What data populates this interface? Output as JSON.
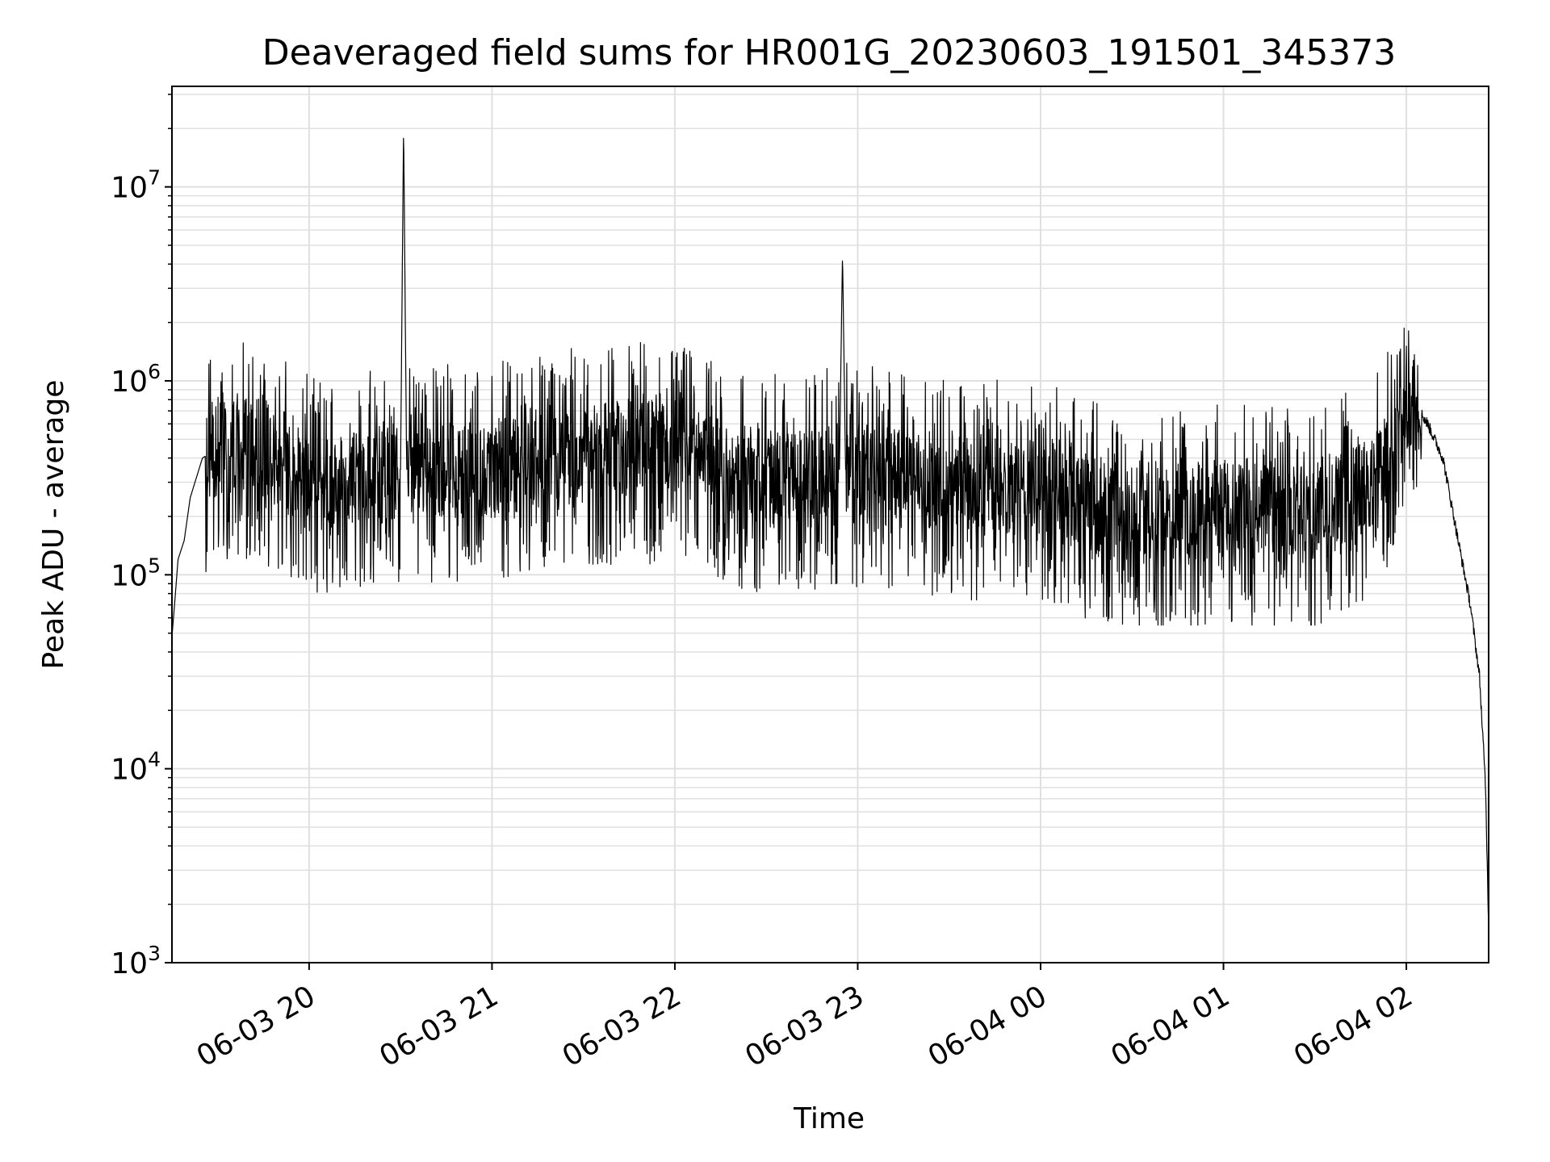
{
  "chart_data": {
    "type": "line",
    "title": "Deaveraged field sums for HR001G_20230603_191501_345373",
    "xlabel": "Time",
    "ylabel": "Peak ADU - average",
    "yscale": "log",
    "ylim": [
      1000,
      33000000
    ],
    "xlim": [
      "2023-06-03 19:15",
      "2023-06-04 02:27"
    ],
    "grid": true,
    "line_color": "#000000",
    "grid_color": "#e0e0e0",
    "x_ticks": [
      {
        "value": "2023-06-03 20:00",
        "label": "06-03 20"
      },
      {
        "value": "2023-06-03 21:00",
        "label": "06-03 21"
      },
      {
        "value": "2023-06-03 22:00",
        "label": "06-03 22"
      },
      {
        "value": "2023-06-03 23:00",
        "label": "06-03 23"
      },
      {
        "value": "2023-06-04 00:00",
        "label": "06-04 00"
      },
      {
        "value": "2023-06-04 01:00",
        "label": "06-04 01"
      },
      {
        "value": "2023-06-04 02:00",
        "label": "06-04 02"
      }
    ],
    "y_ticks": [
      {
        "value": 1000,
        "base": "10",
        "exp": "3"
      },
      {
        "value": 10000,
        "base": "10",
        "exp": "4"
      },
      {
        "value": 100000,
        "base": "10",
        "exp": "5"
      },
      {
        "value": 1000000,
        "base": "10",
        "exp": "6"
      },
      {
        "value": 10000000,
        "base": "10",
        "exp": "7"
      }
    ],
    "series": [
      {
        "description_points": [
          [
            "2023-06-03 19:15",
            48000
          ],
          [
            "2023-06-03 19:16",
            75000
          ],
          [
            "2023-06-03 19:17",
            120000
          ],
          [
            "2023-06-03 19:19",
            150000
          ],
          [
            "2023-06-03 19:21",
            250000
          ],
          [
            "2023-06-03 19:25",
            400000
          ],
          [
            "2023-06-03 19:35",
            500000
          ],
          [
            "2023-06-03 19:45",
            450000
          ],
          [
            "2023-06-03 20:00",
            300000
          ],
          [
            "2023-06-03 20:30",
            350000
          ],
          [
            "2023-06-03 20:31",
            21000000
          ],
          [
            "2023-06-03 20:32",
            350000
          ],
          [
            "2023-06-03 21:00",
            350000
          ],
          [
            "2023-06-03 21:30",
            450000
          ],
          [
            "2023-06-03 22:00",
            450000
          ],
          [
            "2023-06-03 22:30",
            300000
          ],
          [
            "2023-06-03 22:54",
            350000
          ],
          [
            "2023-06-03 22:55",
            4600000
          ],
          [
            "2023-06-03 22:56",
            350000
          ],
          [
            "2023-06-03 23:30",
            300000
          ],
          [
            "2023-06-04 00:00",
            280000
          ],
          [
            "2023-06-04 00:30",
            200000
          ],
          [
            "2023-06-04 01:00",
            220000
          ],
          [
            "2023-06-04 01:30",
            200000
          ],
          [
            "2023-06-04 01:50",
            300000
          ],
          [
            "2023-06-04 02:02",
            800000
          ],
          [
            "2023-06-04 02:07",
            600000
          ],
          [
            "2023-06-04 02:12",
            400000
          ],
          [
            "2023-06-04 02:17",
            150000
          ],
          [
            "2023-06-04 02:21",
            70000
          ],
          [
            "2023-06-04 02:24",
            30000
          ],
          [
            "2023-06-04 02:26",
            8000
          ],
          [
            "2023-06-04 02:27",
            1500
          ]
        ]
      }
    ]
  }
}
